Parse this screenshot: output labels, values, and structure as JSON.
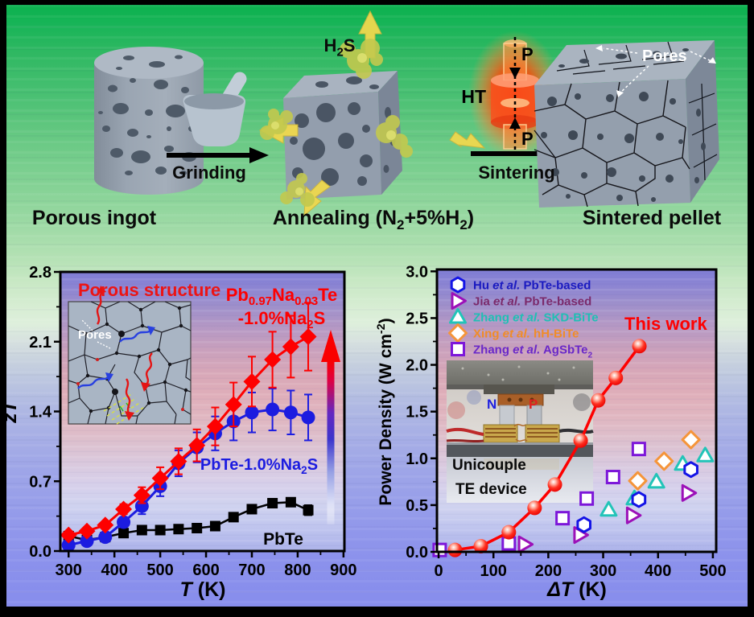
{
  "colors": {
    "accent_red": "#FE0000",
    "series_blue": "#1C1CE0",
    "series_black": "#000000",
    "background_green_top": "#0CB14E",
    "background_periwinkle_bottom": "#878DEC",
    "smoke_yellow": "#C9CE4F",
    "glow_red": "#FF3A00"
  },
  "process": {
    "ingot_label": "Porous ingot",
    "grinding_label": "Grinding",
    "gas_label_rich": [
      {
        "t": "H"
      },
      {
        "t": "2",
        "sub": true
      },
      {
        "t": "S"
      }
    ],
    "annealing_label_rich": [
      {
        "t": "Annealing (N"
      },
      {
        "t": "2",
        "sub": true
      },
      {
        "t": "+5%H"
      },
      {
        "t": "2",
        "sub": true
      },
      {
        "t": ")"
      }
    ],
    "ht_label": "HT",
    "pressure_label": "P",
    "sintering_label": "Sintering",
    "pellet_label": "Sintered  pellet",
    "pores_label": "Pores"
  },
  "chart_data": [
    {
      "id": "zT_vs_T",
      "type": "line",
      "xlabel_rich": [
        {
          "t": "T",
          "i": true
        },
        {
          "t": " (K)"
        }
      ],
      "ylabel_rich": [
        {
          "t": "z",
          "i": true
        },
        {
          "t": "T",
          "i": true
        }
      ],
      "xlim": [
        282,
        902
      ],
      "ylim": [
        0,
        2.8
      ],
      "xticks": [
        300,
        400,
        500,
        600,
        700,
        800,
        900
      ],
      "xtick_labels": [
        "300",
        "400",
        "500",
        "600",
        "700",
        "800",
        "900"
      ],
      "xminor": [
        350,
        450,
        550,
        650,
        750,
        850
      ],
      "yticks": [
        0,
        0.7,
        1.4,
        2.1,
        2.8
      ],
      "ytick_labels": [
        "0.0",
        "0.7",
        "1.4",
        "2.1",
        "2.8"
      ],
      "yminor": [
        0.35,
        1.05,
        1.75,
        2.45
      ],
      "grid": false,
      "inset_title": "Porous structure",
      "inset_pores_label": "Pores",
      "series": [
        {
          "name": "PbTe",
          "marker": "square",
          "color": "#000000",
          "line": true,
          "lw": 2.5,
          "x": [
            300,
            340,
            380,
            420,
            460,
            500,
            540,
            580,
            620,
            660,
            700,
            745,
            785,
            823
          ],
          "y": [
            0.15,
            0.11,
            0.14,
            0.18,
            0.21,
            0.21,
            0.22,
            0.23,
            0.25,
            0.34,
            0.42,
            0.48,
            0.49,
            0.41
          ],
          "err": [
            0.02,
            0.02,
            0.02,
            0.02,
            0.02,
            0.02,
            0.02,
            0.02,
            0.03,
            0.03,
            0.03,
            0.04,
            0.04,
            0.05
          ],
          "label_rich": [
            {
              "t": "PbTe"
            }
          ]
        },
        {
          "name": "PbTe-1.0%Na2S",
          "marker": "circle",
          "color": "#1C1CE0",
          "line": true,
          "lw": 3,
          "x": [
            300,
            340,
            380,
            420,
            460,
            500,
            540,
            580,
            620,
            660,
            700,
            745,
            785,
            823
          ],
          "y": [
            0.06,
            0.1,
            0.14,
            0.29,
            0.45,
            0.65,
            0.88,
            1.04,
            1.18,
            1.3,
            1.39,
            1.42,
            1.39,
            1.34
          ],
          "err": [
            0.02,
            0.02,
            0.03,
            0.05,
            0.08,
            0.1,
            0.13,
            0.15,
            0.17,
            0.19,
            0.2,
            0.21,
            0.22,
            0.23
          ],
          "label_rich": [
            {
              "t": "PbTe-1.0%Na"
            },
            {
              "t": "2",
              "sub": true
            },
            {
              "t": "S"
            }
          ]
        },
        {
          "name": "Pb0.97Na0.03Te-1.0%Na2S",
          "marker": "diamond",
          "color": "#FE0000",
          "line": true,
          "lw": 3,
          "x": [
            300,
            340,
            380,
            420,
            460,
            500,
            540,
            580,
            620,
            660,
            700,
            745,
            785,
            823
          ],
          "y": [
            0.16,
            0.2,
            0.26,
            0.42,
            0.56,
            0.73,
            0.9,
            1.06,
            1.25,
            1.47,
            1.7,
            1.92,
            2.05,
            2.15
          ],
          "err": [
            0.02,
            0.02,
            0.03,
            0.05,
            0.08,
            0.11,
            0.13,
            0.16,
            0.19,
            0.22,
            0.25,
            0.28,
            0.31,
            0.34
          ],
          "label_rich_line1": [
            {
              "t": "Pb"
            },
            {
              "t": "0.97",
              "sub": true
            },
            {
              "t": "Na"
            },
            {
              "t": "0.03",
              "sub": true
            },
            {
              "t": "Te"
            }
          ],
          "label_rich_line2": [
            {
              "t": "-1.0%Na"
            },
            {
              "t": "2",
              "sub": true
            },
            {
              "t": "S"
            }
          ]
        }
      ]
    },
    {
      "id": "power_density_vs_deltaT",
      "type": "scatter",
      "xlabel_rich": [
        {
          "t": "ΔT",
          "i": true
        },
        {
          "t": " (K)"
        }
      ],
      "ylabel_rich": [
        {
          "t": "Power Density (W cm"
        },
        {
          "t": "-2",
          "sup": true
        },
        {
          "t": ")"
        }
      ],
      "xlim": [
        -3,
        506
      ],
      "ylim": [
        0,
        3.02
      ],
      "xticks": [
        0,
        100,
        200,
        300,
        400,
        500
      ],
      "xtick_labels": [
        "0",
        "100",
        "200",
        "300",
        "400",
        "500"
      ],
      "xminor": [
        50,
        150,
        250,
        350,
        450
      ],
      "yticks": [
        0,
        0.5,
        1.0,
        1.5,
        2.0,
        2.5,
        3.0
      ],
      "ytick_labels": [
        "0.0",
        "0.5",
        "1.0",
        "1.5",
        "2.0",
        "2.5",
        "3.0"
      ],
      "yminor": [
        0.25,
        0.75,
        1.25,
        1.75,
        2.25,
        2.75
      ],
      "grid": false,
      "this_work_label": "This work",
      "inset": {
        "line1": "Unicouple",
        "line2": "TE device",
        "n": "N",
        "p": "P"
      },
      "series": [
        {
          "name": "Zhang et al. AgSbTe2",
          "marker": "sq-o",
          "color": "#7D17D9",
          "x": [
            2,
            128,
            226,
            270,
            318,
            365
          ],
          "y": [
            0.02,
            0.09,
            0.36,
            0.57,
            0.8,
            1.1
          ]
        },
        {
          "name": "Jia et al. PbTe-based",
          "marker": "tri-r-o",
          "color": "#9C10B8",
          "x": [
            157,
            258,
            354,
            455
          ],
          "y": [
            0.08,
            0.18,
            0.39,
            0.63
          ]
        },
        {
          "name": "Zhang et al. SKD-BiTe",
          "marker": "tri-o",
          "color": "#22C4B8",
          "x": [
            310,
            357,
            397,
            445,
            486
          ],
          "y": [
            0.45,
            0.57,
            0.75,
            0.94,
            1.03
          ]
        },
        {
          "name": "Xing et al. hH-BiTe",
          "marker": "dia-o",
          "color": "#F5953A",
          "x": [
            363,
            411,
            460
          ],
          "y": [
            0.76,
            0.97,
            1.2
          ]
        },
        {
          "name": "Hu et al. PbTe-based",
          "marker": "hex-o",
          "color": "#1414E6",
          "x": [
            265,
            365,
            460
          ],
          "y": [
            0.29,
            0.56,
            0.88
          ]
        },
        {
          "name": "This work",
          "marker": "ball",
          "color": "#FE0000",
          "line": true,
          "lw": 3.5,
          "x": [
            30,
            77,
            128,
            175,
            212,
            259,
            291,
            323,
            366
          ],
          "y": [
            0.02,
            0.06,
            0.21,
            0.47,
            0.72,
            1.19,
            1.62,
            1.86,
            2.2
          ]
        }
      ],
      "legend": {
        "position": "top-left",
        "entries": [
          {
            "marker": "hex-o",
            "color": "#1414E6",
            "text_color": "#1A1AC0",
            "label": [
              {
                "t": "Hu "
              },
              {
                "t": "et al.",
                "i": true
              },
              {
                "t": " PbTe-based"
              }
            ]
          },
          {
            "marker": "tri-r-o",
            "color": "#9C10B8",
            "text_color": "#7B2A6B",
            "label": [
              {
                "t": "Jia "
              },
              {
                "t": "et al.",
                "i": true
              },
              {
                "t": " PbTe-based"
              }
            ]
          },
          {
            "marker": "tri-o",
            "color": "#22C4B8",
            "text_color": "#1FBFB4",
            "label": [
              {
                "t": "Zhang "
              },
              {
                "t": "et al.",
                "i": true
              },
              {
                "t": " SKD-BiTe"
              }
            ]
          },
          {
            "marker": "dia-o",
            "color": "#F5953A",
            "text_color": "#F08C28",
            "label": [
              {
                "t": "Xing "
              },
              {
                "t": "et al.",
                "i": true
              },
              {
                "t": " hH-BiTe"
              }
            ]
          },
          {
            "marker": "sq-o",
            "color": "#7D17D9",
            "text_color": "#6A28C8",
            "label": [
              {
                "t": "Zhang "
              },
              {
                "t": "et al.",
                "i": true
              },
              {
                "t": " AgSbTe"
              },
              {
                "t": "2",
                "sub": true
              }
            ]
          }
        ]
      }
    }
  ]
}
